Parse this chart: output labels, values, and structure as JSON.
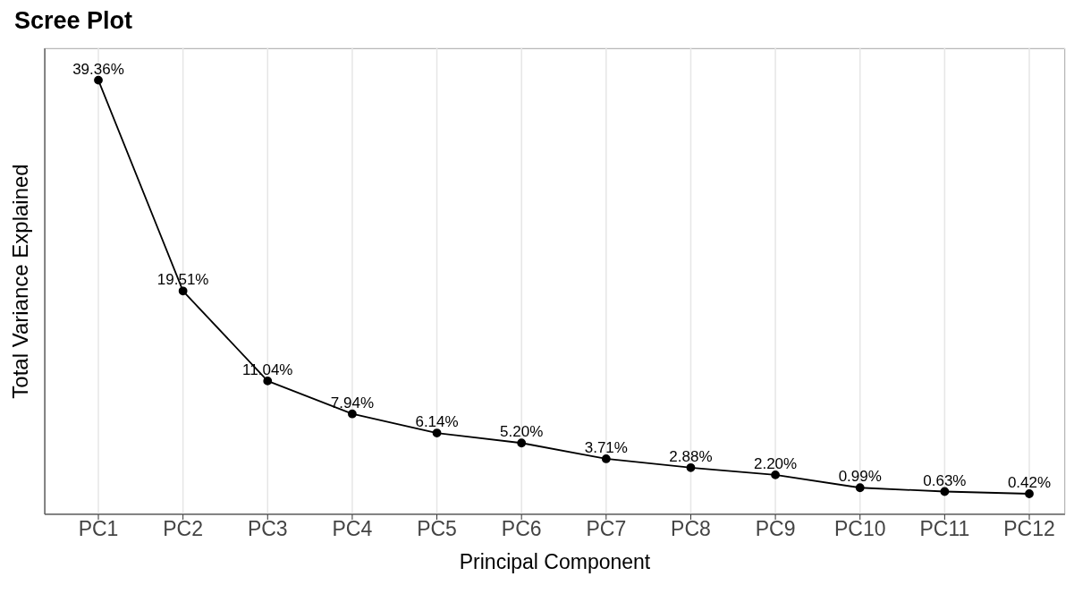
{
  "chart_data": {
    "type": "line",
    "title": "Scree Plot",
    "xlabel": "Principal Component",
    "ylabel": "Total Variance Explained",
    "categories": [
      "PC1",
      "PC2",
      "PC3",
      "PC4",
      "PC5",
      "PC6",
      "PC7",
      "PC8",
      "PC9",
      "PC10",
      "PC11",
      "PC12"
    ],
    "values": [
      39.36,
      19.51,
      11.04,
      7.94,
      6.14,
      5.2,
      3.71,
      2.88,
      2.2,
      0.99,
      0.63,
      0.42
    ],
    "value_labels": [
      "39.36%",
      "19.51%",
      "11.04%",
      "7.94%",
      "6.14%",
      "5.20%",
      "3.71%",
      "2.88%",
      "2.20%",
      "0.99%",
      "0.63%",
      "0.42%"
    ],
    "color": "#000000",
    "marker": "circle",
    "line_style": "solid",
    "grid": true,
    "tick_labels": "x"
  }
}
